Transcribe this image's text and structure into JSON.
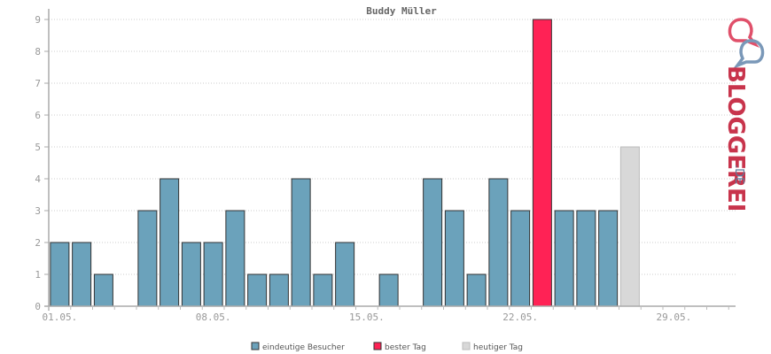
{
  "chart_data": {
    "type": "bar",
    "title": "Buddy Müller",
    "xlabel": "",
    "ylabel": "",
    "ylim": [
      0,
      9
    ],
    "yticks": [
      0,
      1,
      2,
      3,
      4,
      5,
      6,
      7,
      8,
      9
    ],
    "x_tick_labels": [
      {
        "index": 0,
        "label": "01.05."
      },
      {
        "index": 7,
        "label": "08.05."
      },
      {
        "index": 14,
        "label": "15.05."
      },
      {
        "index": 21,
        "label": "22.05."
      },
      {
        "index": 28,
        "label": "29.05."
      }
    ],
    "days": 31,
    "values": [
      2,
      2,
      1,
      0,
      3,
      4,
      2,
      2,
      3,
      1,
      1,
      4,
      1,
      2,
      0,
      1,
      0,
      4,
      3,
      1,
      4,
      3,
      9,
      3,
      3,
      3,
      5,
      0,
      0,
      0,
      0
    ],
    "best_day_index": 22,
    "today_index": 26,
    "grid": true,
    "legend_position": "bottom",
    "legend": [
      {
        "key": "visitors",
        "label": "eindeutige Besucher",
        "color": "#6ba2bb"
      },
      {
        "key": "best",
        "label": "bester Tag",
        "color": "#ff2255"
      },
      {
        "key": "today",
        "label": "heutiger Tag",
        "color": "#d8d8d8"
      }
    ]
  },
  "logo": {
    "text": "BLOGGEREI",
    "suffix": ".DE"
  }
}
